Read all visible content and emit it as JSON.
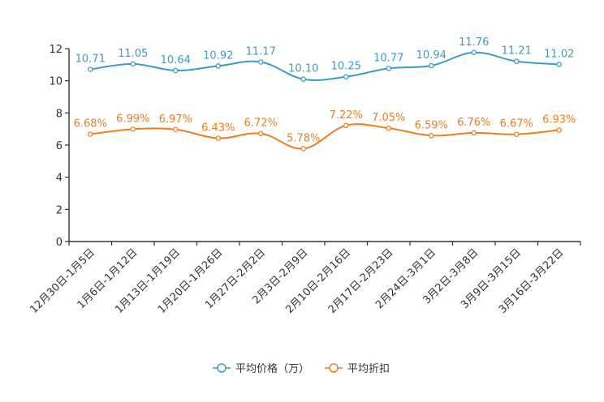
{
  "chart_data": {
    "type": "line",
    "categories": [
      "12月30日-1月5日",
      "1月6日-1月12日",
      "1月13日-1月19日",
      "1月20日-1月26日",
      "1月27日-2月2日",
      "2月3日-2月9日",
      "2月10日-2月16日",
      "2月17日-2月23日",
      "2月24日-3月1日",
      "3月2日-3月8日",
      "3月9日-3月15日",
      "3月16日-3月22日"
    ],
    "series": [
      {
        "name": "平均价格（万）",
        "color": "#3c9bc8",
        "values": [
          10.71,
          11.05,
          10.64,
          10.92,
          11.17,
          10.1,
          10.25,
          10.77,
          10.94,
          11.76,
          11.21,
          11.02
        ],
        "labels": [
          "10.71",
          "11.05",
          "10.64",
          "10.92",
          "11.17",
          "10.10",
          "10.25",
          "10.77",
          "10.94",
          "11.76",
          "11.21",
          "11.02"
        ]
      },
      {
        "name": "平均折扣",
        "color": "#f07d1e",
        "values": [
          6.68,
          6.99,
          6.97,
          6.43,
          6.72,
          5.78,
          7.22,
          7.05,
          6.59,
          6.76,
          6.67,
          6.93
        ],
        "labels": [
          "6.68%",
          "6.99%",
          "6.97%",
          "6.43%",
          "6.72%",
          "5.78%",
          "7.22%",
          "7.05%",
          "6.59%",
          "6.76%",
          "6.67%",
          "6.93%"
        ]
      }
    ],
    "yticks": [
      "0",
      "2",
      "4",
      "6",
      "8",
      "10",
      "12"
    ],
    "ylim": [
      0,
      12
    ],
    "title": "",
    "xlabel": "",
    "ylabel": "",
    "legend_position": "bottom-center",
    "grid": false
  }
}
